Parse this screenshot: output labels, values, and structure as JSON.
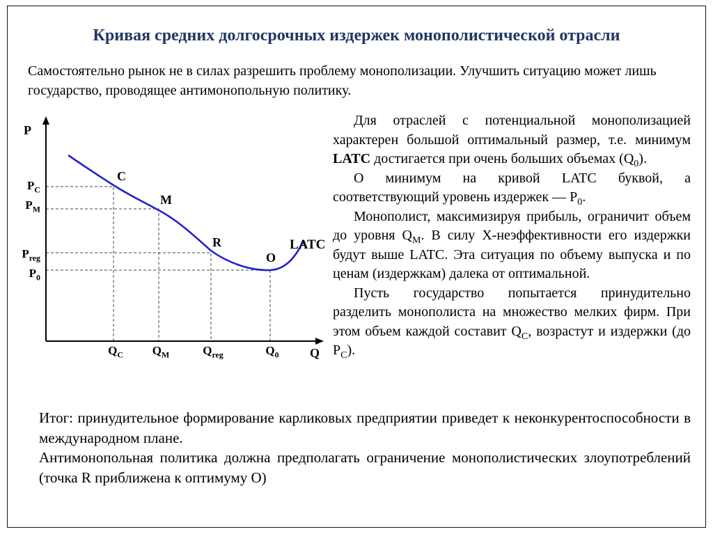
{
  "slide": {
    "title": "Кривая средних долгосрочных издержек монополистической отрасли",
    "intro": "Самостоятельно рынок не в силах разрешить проблему монополизации. Улучшить ситуацию может лишь государство, проводящее антимонопольную политику."
  },
  "chart": {
    "curve_color": "#2222cc",
    "curve_label": "LATC",
    "y_axis_letter": "P",
    "x_axis_letter": "Q",
    "y_ticks": [
      {
        "base": "P",
        "sub": "C"
      },
      {
        "base": "P",
        "sub": "M"
      },
      {
        "base": "P",
        "sub": "reg"
      },
      {
        "base": "P",
        "sub": "0"
      }
    ],
    "x_ticks": [
      {
        "base": "Q",
        "sub": "C"
      },
      {
        "base": "Q",
        "sub": "M"
      },
      {
        "base": "Q",
        "sub": "reg"
      },
      {
        "base": "Q",
        "sub": "0"
      }
    ],
    "points": [
      "C",
      "M",
      "R",
      "O"
    ]
  },
  "chart_data": {
    "type": "line",
    "title": "Кривая средних долгосрочных издержек (LATC) монополистической отрасли",
    "xlabel": "Q",
    "ylabel": "P",
    "grid": false,
    "legend": false,
    "series": [
      {
        "name": "LATC",
        "description": "Убывающая выпуклая кривая, достигающая минимума в точке O при объеме Q0 и уровне издержек P0, затем слегка возрастающая",
        "points": [
          {
            "label": "C",
            "x": "QC",
            "y": "PC"
          },
          {
            "label": "M",
            "x": "QM",
            "y": "PM"
          },
          {
            "label": "R",
            "x": "Qreg",
            "y": "Preg"
          },
          {
            "label": "O",
            "x": "Q0",
            "y": "P0"
          }
        ]
      }
    ]
  },
  "commentary": [
    {
      "segments": [
        {
          "t": "Для отраслей с потенциальной монополизацией характерен большой оптимальный размер, т.е. минимум "
        },
        {
          "t": "LATC",
          "s": "b"
        },
        {
          "t": " достигается при очень больших объемах (Q"
        },
        {
          "t": "0",
          "s": "sub"
        },
        {
          "t": ")."
        }
      ]
    },
    {
      "segments": [
        {
          "t": "О минимум на кривой LATC буквой, а соответствующий уровень издержек — P"
        },
        {
          "t": "0",
          "s": "sub"
        },
        {
          "t": "."
        }
      ]
    },
    {
      "segments": [
        {
          "t": "Монополист, максимизируя прибыль, ограничит объем до уровня Q"
        },
        {
          "t": "M",
          "s": "sub"
        },
        {
          "t": ". В силу X-неэффективности его издержки будут выше LATC. Эта ситуация по объему выпуска и по ценам (издержкам) далека от оптимальной."
        }
      ]
    },
    {
      "segments": [
        {
          "t": "Пусть государство попытается принудительно разделить монополиста на множество мелких фирм. При этом объем каждой составит Q"
        },
        {
          "t": "C",
          "s": "sub"
        },
        {
          "t": ", возрастут и издержки (до P"
        },
        {
          "t": "C",
          "s": "sub"
        },
        {
          "t": ")."
        }
      ]
    }
  ],
  "conclusion": [
    {
      "segments": [
        {
          "t": "Итог: принудительное формирование карликовых предприятии приведет к неконкурентоспособности в международном плане."
        }
      ]
    },
    {
      "segments": [
        {
          "t": "Антимонопольная политика должна предполагать ограничение монополистических злоупотреблений (точка R приближена к оптимуму О)"
        }
      ]
    }
  ]
}
